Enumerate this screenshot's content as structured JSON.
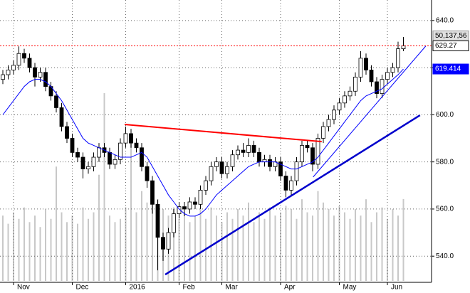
{
  "chart_data": {
    "type": "candlestick",
    "categories": [
      null,
      null,
      "Nov",
      null,
      null,
      null,
      null,
      null,
      null,
      null,
      null,
      null,
      null,
      "Dec",
      null,
      null,
      null,
      null,
      null,
      null,
      null,
      null,
      null,
      "2016",
      null,
      null,
      null,
      null,
      null,
      null,
      null,
      null,
      null,
      "Feb",
      null,
      null,
      null,
      null,
      null,
      null,
      null,
      "Mar",
      null,
      null,
      null,
      null,
      null,
      null,
      null,
      null,
      null,
      null,
      "Apr",
      null,
      null,
      null,
      null,
      null,
      null,
      null,
      null,
      null,
      null,
      "May",
      null,
      null,
      null,
      null,
      null,
      null,
      null,
      null,
      "Jun",
      null,
      null,
      null
    ],
    "open": [
      615,
      617,
      619,
      621,
      626,
      624,
      620,
      616,
      618,
      612,
      608,
      603,
      595,
      590,
      584,
      582,
      577,
      578,
      582,
      586,
      584,
      579,
      581,
      588,
      592,
      588,
      586,
      578,
      572,
      562,
      548,
      543,
      550,
      558,
      561,
      560,
      563,
      562,
      568,
      572,
      578,
      580,
      575,
      578,
      583,
      585,
      584,
      587,
      584,
      580,
      581,
      578,
      580,
      574,
      568,
      572,
      580,
      587,
      586,
      579,
      590,
      595,
      598,
      602,
      605,
      608,
      610,
      616,
      624,
      619,
      614,
      609,
      615,
      618,
      620,
      628
    ],
    "high": [
      619,
      621,
      623,
      629,
      628,
      626,
      622,
      620,
      620,
      614,
      610,
      605,
      597,
      592,
      586,
      584,
      580,
      584,
      588,
      588,
      586,
      583,
      590,
      595,
      594,
      590,
      588,
      580,
      574,
      564,
      550,
      552,
      560,
      563,
      563,
      565,
      565,
      570,
      574,
      580,
      582,
      582,
      580,
      585,
      587,
      588,
      590,
      589,
      586,
      583,
      583,
      582,
      582,
      576,
      574,
      582,
      589,
      589,
      588,
      592,
      597,
      600,
      604,
      607,
      610,
      612,
      618,
      627,
      626,
      621,
      616,
      617,
      620,
      622,
      631,
      633
    ],
    "low": [
      613,
      615,
      617,
      619,
      622,
      618,
      612,
      614,
      610,
      606,
      601,
      593,
      588,
      582,
      580,
      573,
      575,
      576,
      580,
      582,
      577,
      577,
      579,
      586,
      586,
      584,
      576,
      569,
      558,
      534,
      538,
      541,
      548,
      556,
      557,
      558,
      560,
      560,
      566,
      570,
      576,
      573,
      573,
      576,
      581,
      582,
      582,
      582,
      578,
      578,
      576,
      576,
      572,
      565,
      566,
      570,
      578,
      584,
      576,
      577,
      588,
      593,
      596,
      600,
      603,
      606,
      608,
      614,
      617,
      612,
      607,
      607,
      613,
      616,
      618,
      627
    ],
    "close": [
      617,
      619,
      621,
      626,
      624,
      620,
      616,
      618,
      612,
      608,
      603,
      595,
      590,
      584,
      582,
      577,
      578,
      582,
      586,
      584,
      579,
      581,
      588,
      592,
      588,
      586,
      578,
      572,
      562,
      548,
      543,
      550,
      558,
      561,
      560,
      563,
      562,
      568,
      572,
      578,
      580,
      575,
      578,
      583,
      585,
      584,
      587,
      584,
      580,
      581,
      578,
      580,
      574,
      568,
      572,
      580,
      587,
      586,
      579,
      590,
      595,
      598,
      602,
      605,
      608,
      610,
      616,
      624,
      619,
      614,
      609,
      615,
      618,
      620,
      628,
      629.27
    ],
    "moving_average": [
      600,
      603,
      606,
      609,
      612,
      614,
      615,
      615,
      614,
      612,
      609,
      606,
      602,
      598,
      594,
      590,
      588,
      587,
      586,
      585,
      584,
      583,
      582,
      582,
      582,
      583,
      584,
      582,
      578,
      574,
      570,
      566,
      563,
      560,
      558,
      557,
      557,
      558,
      560,
      563,
      566,
      568,
      570,
      572,
      574,
      576,
      578,
      579,
      580,
      580,
      580,
      580,
      579,
      578,
      577,
      577,
      578,
      579,
      580,
      582,
      585,
      588,
      591,
      594,
      597,
      600,
      603,
      606,
      608,
      609,
      610,
      611,
      613,
      615,
      617,
      619.414
    ],
    "ma_color": "#0000ff",
    "volume": [
      40,
      35,
      42,
      38,
      45,
      36,
      40,
      33,
      44,
      38,
      70,
      42,
      36,
      40,
      35,
      45,
      38,
      42,
      65,
      115,
      40,
      36,
      38,
      45,
      90,
      42,
      55,
      48,
      60,
      50,
      44,
      40,
      45,
      38,
      42,
      36,
      40,
      44,
      38,
      45,
      40,
      36,
      42,
      38,
      44,
      40,
      48,
      36,
      42,
      38,
      45,
      40,
      42,
      46,
      44,
      38,
      50,
      42,
      40,
      55,
      48,
      44,
      40,
      46,
      42,
      38,
      44,
      40,
      50,
      36,
      42,
      45,
      38,
      44,
      40,
      50.137
    ],
    "volume_color": "#c8c8c8",
    "volume_label": "50,137,56",
    "y2lim": [
      0,
      172
    ],
    "last_price": 629.27,
    "trendlines": [
      {
        "color": "#ff0000",
        "x": [
          22.8,
          59.7
        ],
        "y": [
          595.9,
          588.6
        ]
      },
      {
        "color": "#0000cc",
        "x": [
          30.4,
          78.1
        ],
        "y": [
          532.2,
          599.8
        ]
      },
      {
        "color": "#0000ff",
        "x": [
          58.1,
          79.2
        ],
        "y": [
          573.6,
          629.2
        ]
      }
    ],
    "ylim": [
      529.5,
      648.7
    ],
    "yticks": [
      {
        "value": 540,
        "label": "540.0"
      },
      {
        "value": 560,
        "label": "560.0"
      },
      {
        "value": 580,
        "label": "580.0"
      },
      {
        "value": 600,
        "label": "600.0"
      },
      {
        "value": 620,
        "label": "620.0"
      },
      {
        "value": 640,
        "label": "640.0"
      }
    ],
    "grid": true
  }
}
